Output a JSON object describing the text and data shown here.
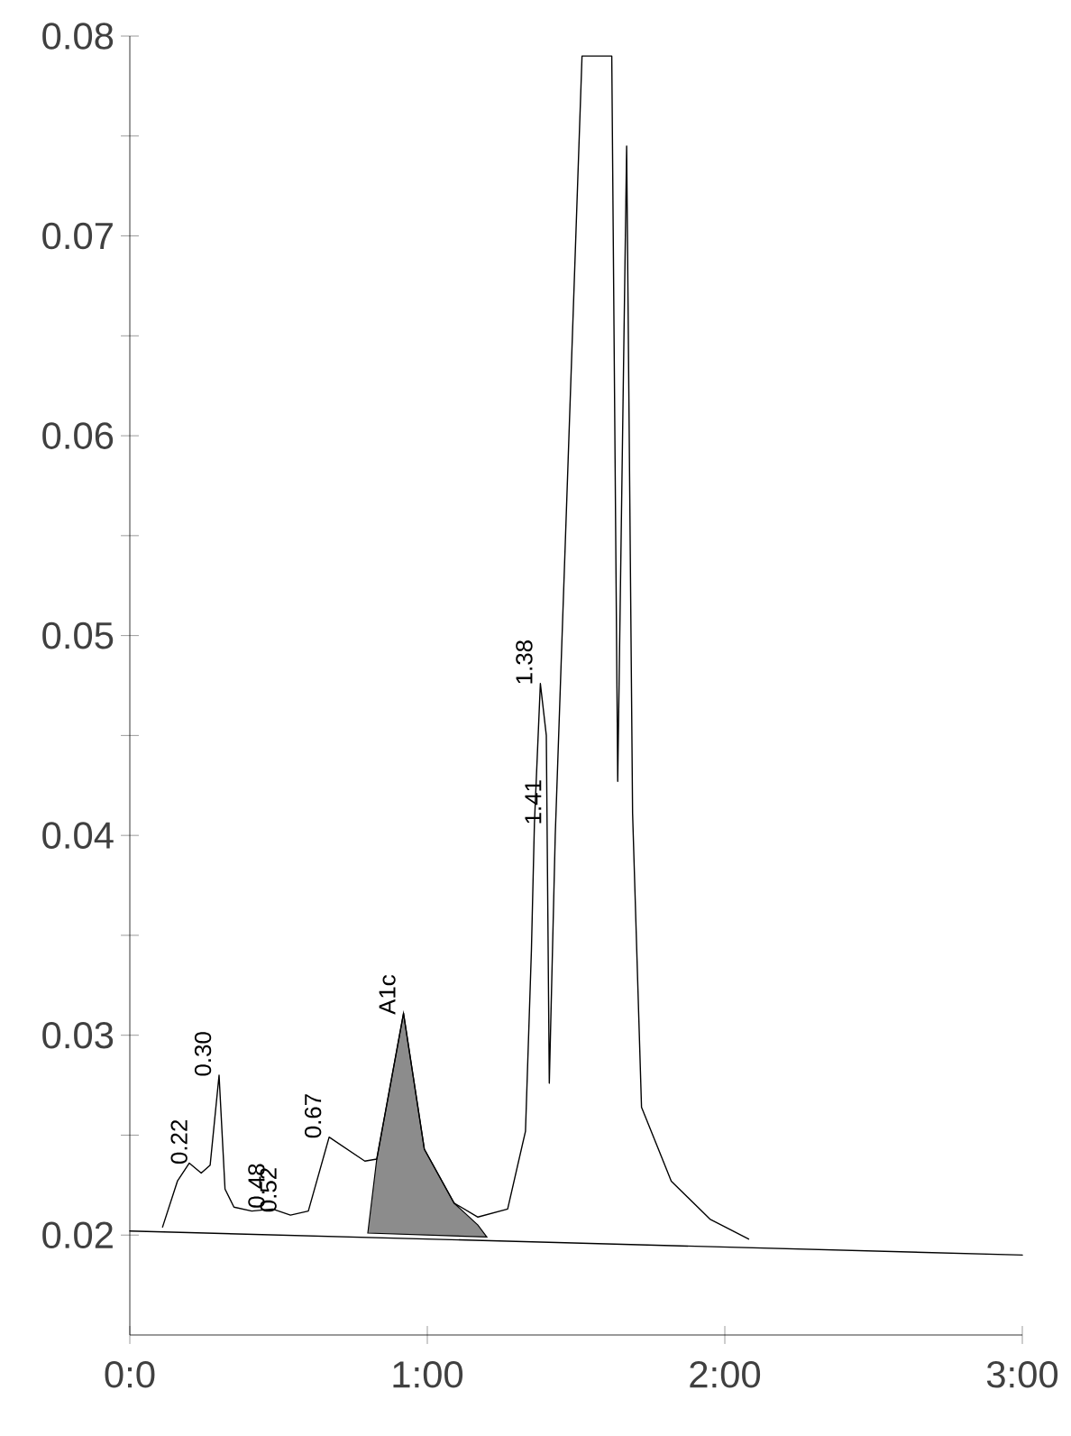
{
  "chart_data": {
    "type": "line",
    "xlim": [
      0,
      3
    ],
    "ylim": [
      0.015,
      0.08
    ],
    "xticks": [
      {
        "value": 0,
        "label": "0:0"
      },
      {
        "value": 1,
        "label": "1:00"
      },
      {
        "value": 2,
        "label": "2:00"
      },
      {
        "value": 3,
        "label": "3:00"
      }
    ],
    "yticks": [
      0.02,
      {
        "value": 0.025,
        "label": null
      },
      0.03,
      {
        "value": 0.035,
        "label": null
      },
      0.04,
      {
        "value": 0.045,
        "label": null
      },
      0.05,
      {
        "value": 0.055,
        "label": null
      },
      0.06,
      {
        "value": 0.065,
        "label": null
      },
      0.07,
      {
        "value": 0.075,
        "label": null
      },
      0.08
    ],
    "series": [
      {
        "color": "#000000",
        "x": [
          0.11,
          0.16,
          0.2,
          0.24,
          0.27,
          0.3,
          0.32,
          0.35,
          0.41,
          0.48,
          0.54,
          0.6,
          0.67,
          0.79,
          0.83,
          0.92,
          0.99,
          1.09,
          1.17,
          1.27,
          1.33,
          1.35,
          1.36,
          1.38,
          1.4,
          1.41,
          1.43,
          1.52,
          1.62,
          1.64,
          1.67,
          1.69,
          1.72,
          1.82,
          1.95,
          2.08
        ],
        "values": [
          0.0204,
          0.0227,
          0.0236,
          0.0231,
          0.0235,
          0.028,
          0.0223,
          0.0214,
          0.0212,
          0.0213,
          0.021,
          0.0212,
          0.0249,
          0.0237,
          0.0238,
          0.0311,
          0.0243,
          0.0216,
          0.0209,
          0.0213,
          0.0252,
          0.0343,
          0.0406,
          0.0476,
          0.045,
          0.0276,
          0.04,
          0.079,
          0.079,
          0.0427,
          0.0745,
          0.0411,
          0.0264,
          0.0227,
          0.0208,
          0.0198
        ]
      },
      {
        "type": "area",
        "color": "#8c8c8c",
        "x": [
          0.8,
          0.83,
          0.92,
          0.99,
          1.09,
          1.17,
          1.2
        ],
        "values": [
          0.0201,
          0.0238,
          0.0311,
          0.0243,
          0.0216,
          0.0205,
          0.0199
        ]
      },
      {
        "color": "#000000",
        "x": [
          0,
          3
        ],
        "values": [
          0.0202,
          0.019
        ]
      }
    ],
    "annotations": [
      {
        "text": "0.22",
        "x": 0.22,
        "y": 0.0236
      },
      {
        "text": "0.30",
        "x": 0.3,
        "y": 0.028
      },
      {
        "text": "0.48",
        "x": 0.48,
        "y": 0.0214
      },
      {
        "text": "0.52",
        "x": 0.52,
        "y": 0.0212
      },
      {
        "text": "0.67",
        "x": 0.67,
        "y": 0.0249
      },
      {
        "text": "A1c",
        "x": 0.92,
        "y": 0.0311
      },
      {
        "text": "1.38",
        "x": 1.38,
        "y": 0.0476
      },
      {
        "text": "1.41",
        "x": 1.41,
        "y": 0.0406
      }
    ],
    "grid": false
  }
}
